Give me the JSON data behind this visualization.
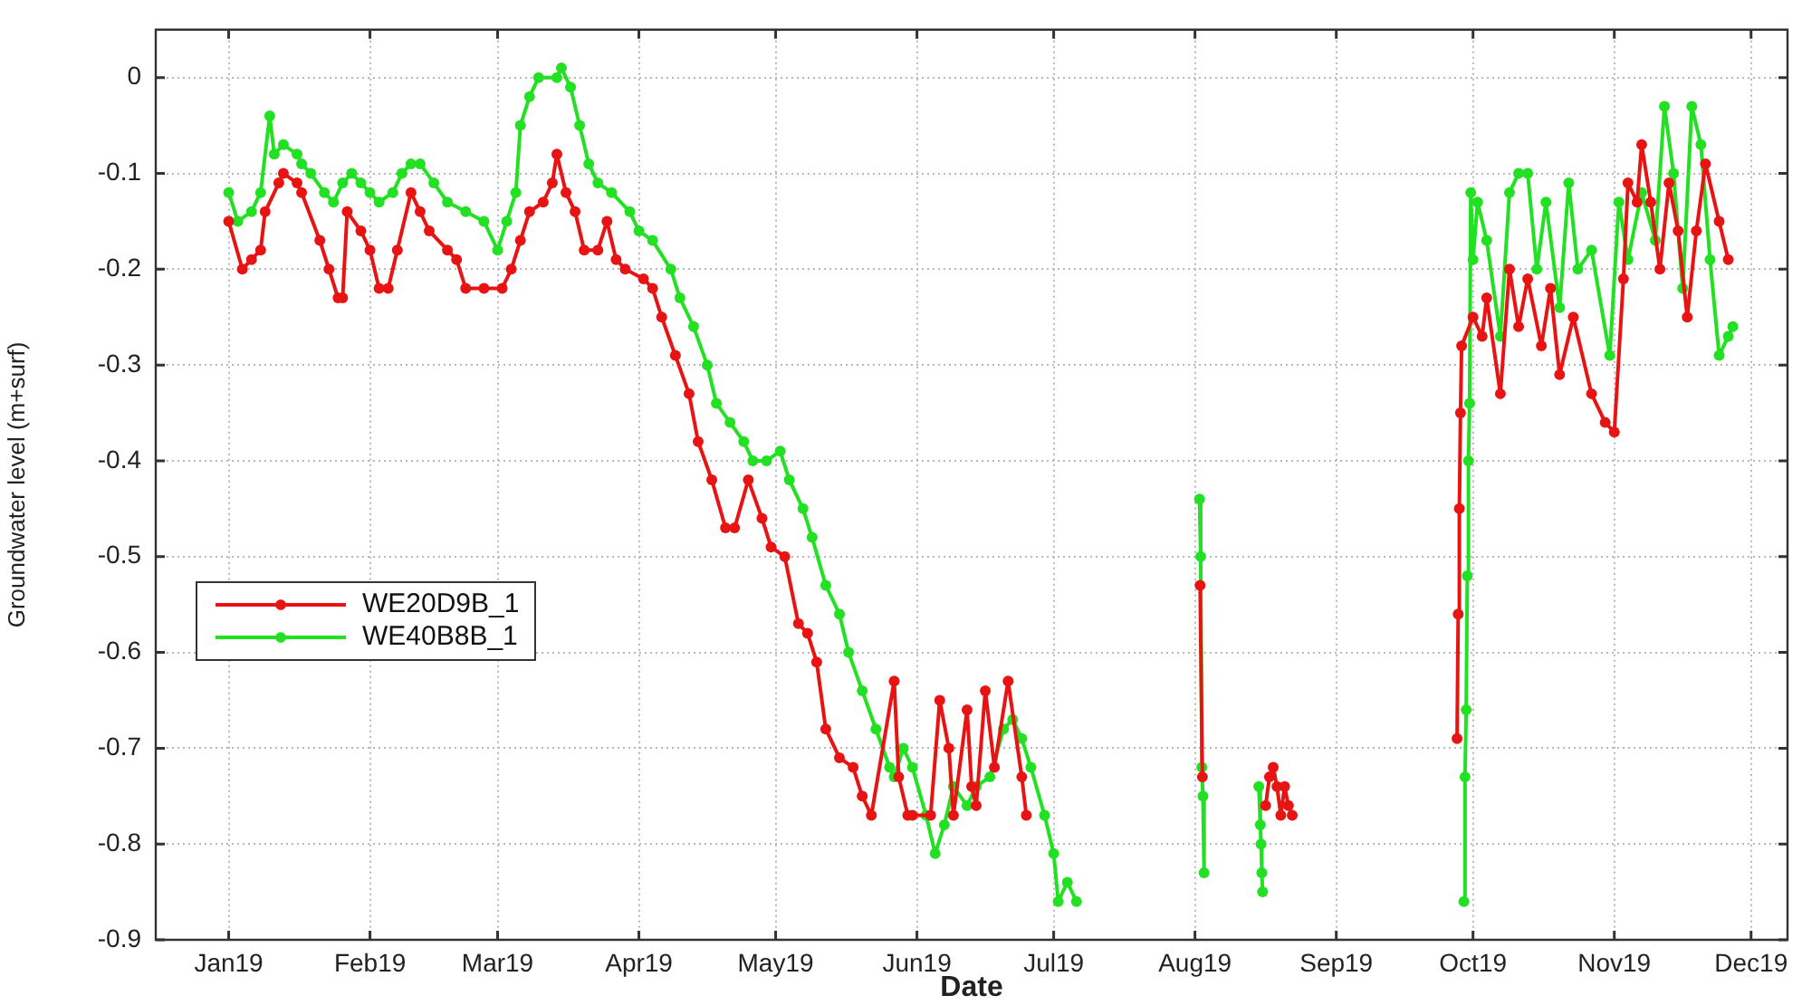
{
  "chart_data": {
    "type": "line",
    "xlabel": "Date",
    "ylabel": "Groundwater level (m+surf)",
    "xlim": [
      "2018-12-16",
      "2019-12-09"
    ],
    "xticks": [
      {
        "value": "2019-01-01",
        "label": "Jan19"
      },
      {
        "value": "2019-02-01",
        "label": "Feb19"
      },
      {
        "value": "2019-03-01",
        "label": "Mar19"
      },
      {
        "value": "2019-04-01",
        "label": "Apr19"
      },
      {
        "value": "2019-05-01",
        "label": "May19"
      },
      {
        "value": "2019-06-01",
        "label": "Jun19"
      },
      {
        "value": "2019-07-01",
        "label": "Jul19"
      },
      {
        "value": "2019-08-01",
        "label": "Aug19"
      },
      {
        "value": "2019-09-01",
        "label": "Sep19"
      },
      {
        "value": "2019-10-01",
        "label": "Oct19"
      },
      {
        "value": "2019-11-01",
        "label": "Nov19"
      },
      {
        "value": "2019-12-01",
        "label": "Dec19"
      }
    ],
    "ylim": [
      -0.9,
      0.05
    ],
    "yticks": [
      -0.9,
      -0.8,
      -0.7,
      -0.6,
      -0.5,
      -0.4,
      -0.3,
      -0.2,
      -0.1,
      0
    ],
    "grid": true,
    "legend": "left",
    "marker": "circle",
    "line_style": "solid",
    "series": [
      {
        "name": "WE20D9B_1",
        "color": "#e81414",
        "x": [
          "2019-01-01",
          "2019-01-04",
          "2019-01-06",
          "2019-01-08",
          "2019-01-09",
          "2019-01-12",
          "2019-01-13",
          "2019-01-16",
          "2019-01-17",
          "2019-01-21",
          "2019-01-23",
          "2019-01-25",
          "2019-01-26",
          "2019-01-27",
          "2019-01-30",
          "2019-02-01",
          "2019-02-03",
          "2019-02-05",
          "2019-02-07",
          "2019-02-10",
          "2019-02-12",
          "2019-02-14",
          "2019-02-18",
          "2019-02-20",
          "2019-02-22",
          "2019-02-26",
          "2019-03-02",
          "2019-03-04",
          "2019-03-06",
          "2019-03-08",
          "2019-03-11",
          "2019-03-13",
          "2019-03-14",
          "2019-03-16",
          "2019-03-18",
          "2019-03-20",
          "2019-03-23",
          "2019-03-25",
          "2019-03-27",
          "2019-03-29",
          "2019-04-02",
          "2019-04-04",
          "2019-04-06",
          "2019-04-09",
          "2019-04-12",
          "2019-04-14",
          "2019-04-17",
          "2019-04-20",
          "2019-04-22",
          "2019-04-25",
          "2019-04-28",
          "2019-04-30",
          "2019-05-03",
          "2019-05-06",
          "2019-05-08",
          "2019-05-10",
          "2019-05-12",
          "2019-05-15",
          "2019-05-18",
          "2019-05-20",
          "2019-05-22",
          "2019-05-27",
          "2019-05-28",
          "2019-05-30",
          "2019-05-31",
          "2019-06-04",
          "2019-06-06",
          "2019-06-08",
          "2019-06-09",
          "2019-06-12",
          "2019-06-13",
          "2019-06-14",
          "2019-06-16",
          "2019-06-18",
          "2019-06-21",
          "2019-06-24",
          "2019-06-25",
          "2019-07-15",
          "2019-08-02T03:00",
          "2019-08-02T15:00",
          "2019-08-08",
          "2019-08-16T12:00",
          "2019-08-17T08:00",
          "2019-08-18T04:00",
          "2019-08-19T00:00",
          "2019-08-19T20:00",
          "2019-08-20T16:00",
          "2019-08-21T12:00",
          "2019-08-22T08:00",
          "2019-09-10",
          "2019-09-27T12:00",
          "2019-09-27T18:00",
          "2019-09-28T00:00",
          "2019-09-28T06:00",
          "2019-09-28T12:00",
          "2019-10-01",
          "2019-10-03",
          "2019-10-04",
          "2019-10-07",
          "2019-10-09",
          "2019-10-11",
          "2019-10-13",
          "2019-10-16",
          "2019-10-18",
          "2019-10-20",
          "2019-10-23",
          "2019-10-27",
          "2019-10-30",
          "2019-11-01",
          "2019-11-03",
          "2019-11-04",
          "2019-11-06",
          "2019-11-07",
          "2019-11-09",
          "2019-11-11",
          "2019-11-13",
          "2019-11-15",
          "2019-11-17",
          "2019-11-19",
          "2019-11-21",
          "2019-11-24",
          "2019-11-26"
        ],
        "values": [
          -0.15,
          -0.2,
          -0.19,
          -0.18,
          -0.14,
          -0.11,
          -0.1,
          -0.11,
          -0.12,
          -0.17,
          -0.2,
          -0.23,
          -0.23,
          -0.14,
          -0.16,
          -0.18,
          -0.22,
          -0.22,
          -0.18,
          -0.12,
          -0.14,
          -0.16,
          -0.18,
          -0.19,
          -0.22,
          -0.22,
          -0.22,
          -0.2,
          -0.17,
          -0.14,
          -0.13,
          -0.11,
          -0.08,
          -0.12,
          -0.14,
          -0.18,
          -0.18,
          -0.15,
          -0.19,
          -0.2,
          -0.21,
          -0.22,
          -0.25,
          -0.29,
          -0.33,
          -0.38,
          -0.42,
          -0.47,
          -0.47,
          -0.42,
          -0.46,
          -0.49,
          -0.5,
          -0.57,
          -0.58,
          -0.61,
          -0.68,
          -0.71,
          -0.72,
          -0.75,
          -0.77,
          -0.63,
          -0.73,
          -0.77,
          -0.77,
          -0.77,
          -0.65,
          -0.7,
          -0.77,
          -0.66,
          -0.74,
          -0.76,
          -0.64,
          -0.72,
          -0.63,
          -0.73,
          -0.77,
          null,
          -0.53,
          -0.73,
          null,
          -0.76,
          -0.73,
          -0.72,
          -0.74,
          -0.77,
          -0.74,
          -0.76,
          -0.77,
          null,
          -0.69,
          -0.56,
          -0.45,
          -0.35,
          -0.28,
          -0.25,
          -0.27,
          -0.23,
          -0.33,
          -0.2,
          -0.26,
          -0.21,
          -0.28,
          -0.22,
          -0.31,
          -0.25,
          -0.33,
          -0.36,
          -0.37,
          -0.21,
          -0.11,
          -0.13,
          -0.07,
          -0.13,
          -0.2,
          -0.11,
          -0.16,
          -0.25,
          -0.16,
          -0.09,
          -0.15,
          -0.19
        ]
      },
      {
        "name": "WE40B8B_1",
        "color": "#22e022",
        "x": [
          "2019-01-01",
          "2019-01-03",
          "2019-01-06",
          "2019-01-08",
          "2019-01-10",
          "2019-01-11",
          "2019-01-13",
          "2019-01-16",
          "2019-01-17",
          "2019-01-19",
          "2019-01-22",
          "2019-01-24",
          "2019-01-26",
          "2019-01-28",
          "2019-01-30",
          "2019-02-01",
          "2019-02-03",
          "2019-02-06",
          "2019-02-08",
          "2019-02-10",
          "2019-02-12",
          "2019-02-15",
          "2019-02-18",
          "2019-02-22",
          "2019-02-26",
          "2019-03-01",
          "2019-03-03",
          "2019-03-05",
          "2019-03-06",
          "2019-03-08",
          "2019-03-10",
          "2019-03-14",
          "2019-03-15",
          "2019-03-17",
          "2019-03-19",
          "2019-03-21",
          "2019-03-23",
          "2019-03-26",
          "2019-03-30",
          "2019-04-01",
          "2019-04-04",
          "2019-04-08",
          "2019-04-10",
          "2019-04-13",
          "2019-04-16",
          "2019-04-18",
          "2019-04-21",
          "2019-04-24",
          "2019-04-26",
          "2019-04-29",
          "2019-05-02",
          "2019-05-04",
          "2019-05-07",
          "2019-05-09",
          "2019-05-12",
          "2019-05-15",
          "2019-05-17",
          "2019-05-20",
          "2019-05-23",
          "2019-05-26",
          "2019-05-27",
          "2019-05-29",
          "2019-05-31",
          "2019-06-03",
          "2019-06-05",
          "2019-06-07",
          "2019-06-09",
          "2019-06-12",
          "2019-06-14",
          "2019-06-17",
          "2019-06-20",
          "2019-06-22",
          "2019-06-24",
          "2019-06-26",
          "2019-06-29",
          "2019-07-01",
          "2019-07-02",
          "2019-07-04",
          "2019-07-06",
          "2019-07-20",
          "2019-08-02T00:00",
          "2019-08-02T06:00",
          "2019-08-02T12:00",
          "2019-08-02T18:00",
          "2019-08-03T00:00",
          "2019-08-08",
          "2019-08-15T00:00",
          "2019-08-15T08:00",
          "2019-08-15T12:00",
          "2019-08-15T16:00",
          "2019-08-15T20:00",
          "2019-09-10",
          "2019-09-29T00:00",
          "2019-09-29T06:00",
          "2019-09-29T12:00",
          "2019-09-29T18:00",
          "2019-09-30T00:00",
          "2019-09-30T06:00",
          "2019-09-30T12:00",
          "2019-10-01",
          "2019-10-02",
          "2019-10-04",
          "2019-10-07",
          "2019-10-09",
          "2019-10-11",
          "2019-10-13",
          "2019-10-15",
          "2019-10-17",
          "2019-10-20",
          "2019-10-22",
          "2019-10-24",
          "2019-10-27",
          "2019-10-31",
          "2019-11-02",
          "2019-11-04",
          "2019-11-07",
          "2019-11-10",
          "2019-11-12",
          "2019-11-14",
          "2019-11-16",
          "2019-11-18",
          "2019-11-20",
          "2019-11-22",
          "2019-11-24",
          "2019-11-26",
          "2019-11-27"
        ],
        "values": [
          -0.12,
          -0.15,
          -0.14,
          -0.12,
          -0.04,
          -0.08,
          -0.07,
          -0.08,
          -0.09,
          -0.1,
          -0.12,
          -0.13,
          -0.11,
          -0.1,
          -0.11,
          -0.12,
          -0.13,
          -0.12,
          -0.1,
          -0.09,
          -0.09,
          -0.11,
          -0.13,
          -0.14,
          -0.15,
          -0.18,
          -0.15,
          -0.12,
          -0.05,
          -0.02,
          0,
          0,
          0.01,
          -0.01,
          -0.05,
          -0.09,
          -0.11,
          -0.12,
          -0.14,
          -0.16,
          -0.17,
          -0.2,
          -0.23,
          -0.26,
          -0.3,
          -0.34,
          -0.36,
          -0.38,
          -0.4,
          -0.4,
          -0.39,
          -0.42,
          -0.45,
          -0.48,
          -0.53,
          -0.56,
          -0.6,
          -0.64,
          -0.68,
          -0.72,
          -0.73,
          -0.7,
          -0.72,
          -0.77,
          -0.81,
          -0.78,
          -0.74,
          -0.76,
          -0.74,
          -0.73,
          -0.68,
          -0.67,
          -0.69,
          -0.72,
          -0.77,
          -0.81,
          -0.86,
          -0.84,
          -0.86,
          null,
          -0.44,
          -0.5,
          -0.72,
          -0.75,
          -0.83,
          null,
          -0.74,
          -0.78,
          -0.8,
          -0.83,
          -0.85,
          null,
          -0.86,
          -0.73,
          -0.66,
          -0.52,
          -0.4,
          -0.34,
          -0.12,
          -0.19,
          -0.13,
          -0.17,
          -0.27,
          -0.12,
          -0.1,
          -0.1,
          -0.2,
          -0.13,
          -0.24,
          -0.11,
          -0.2,
          -0.18,
          -0.29,
          -0.13,
          -0.19,
          -0.12,
          -0.17,
          -0.03,
          -0.1,
          -0.22,
          -0.03,
          -0.07,
          -0.19,
          -0.29,
          -0.27,
          -0.26
        ]
      }
    ]
  }
}
